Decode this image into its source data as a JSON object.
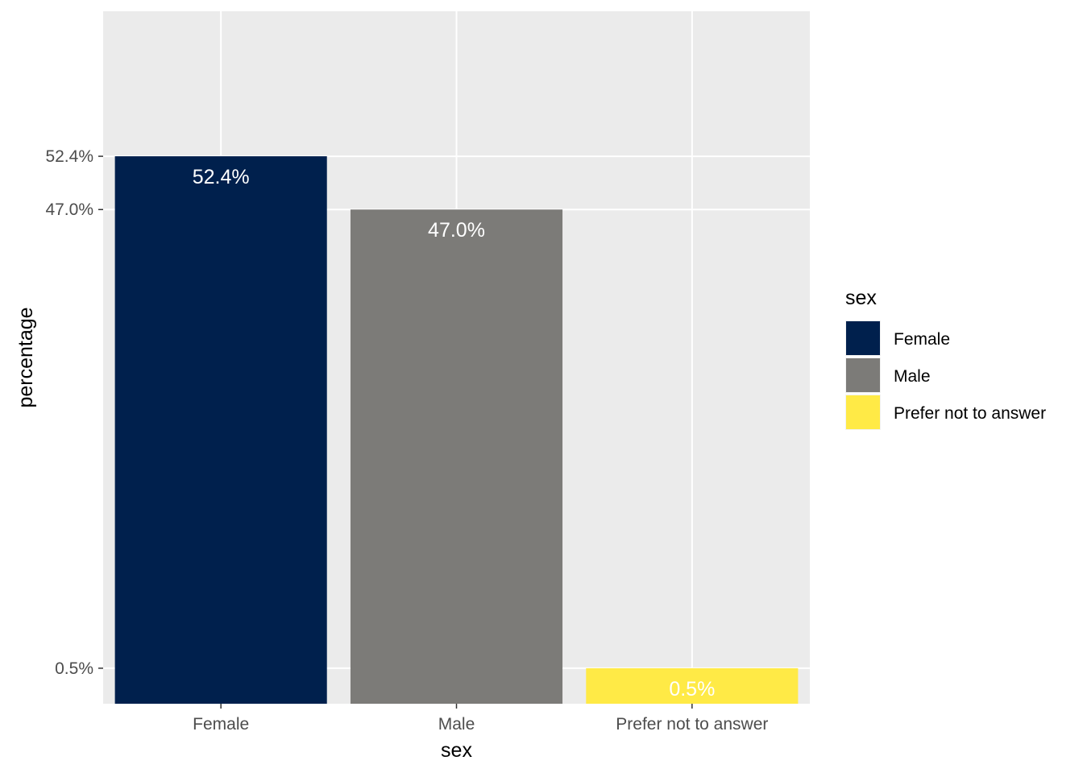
{
  "chart_data": {
    "type": "bar",
    "categories": [
      "Female",
      "Male",
      "Prefer not to answer"
    ],
    "values": [
      52.4,
      47.0,
      0.5
    ],
    "data_labels": [
      "52.4%",
      "47.0%",
      "0.5%"
    ],
    "colors": [
      "#00204d",
      "#7c7b78",
      "#ffea46"
    ],
    "xlabel": "sex",
    "ylabel": "percentage",
    "y_ticks": [
      {
        "value": 0.5,
        "label": "0.5%"
      },
      {
        "value": 47.0,
        "label": "47.0%"
      },
      {
        "value": 52.4,
        "label": "52.4%"
      }
    ],
    "ylim": [
      -3.1,
      67.1
    ],
    "grid": true,
    "legend": {
      "title": "sex",
      "position": "right",
      "entries": [
        "Female",
        "Male",
        "Prefer not to answer"
      ]
    }
  }
}
